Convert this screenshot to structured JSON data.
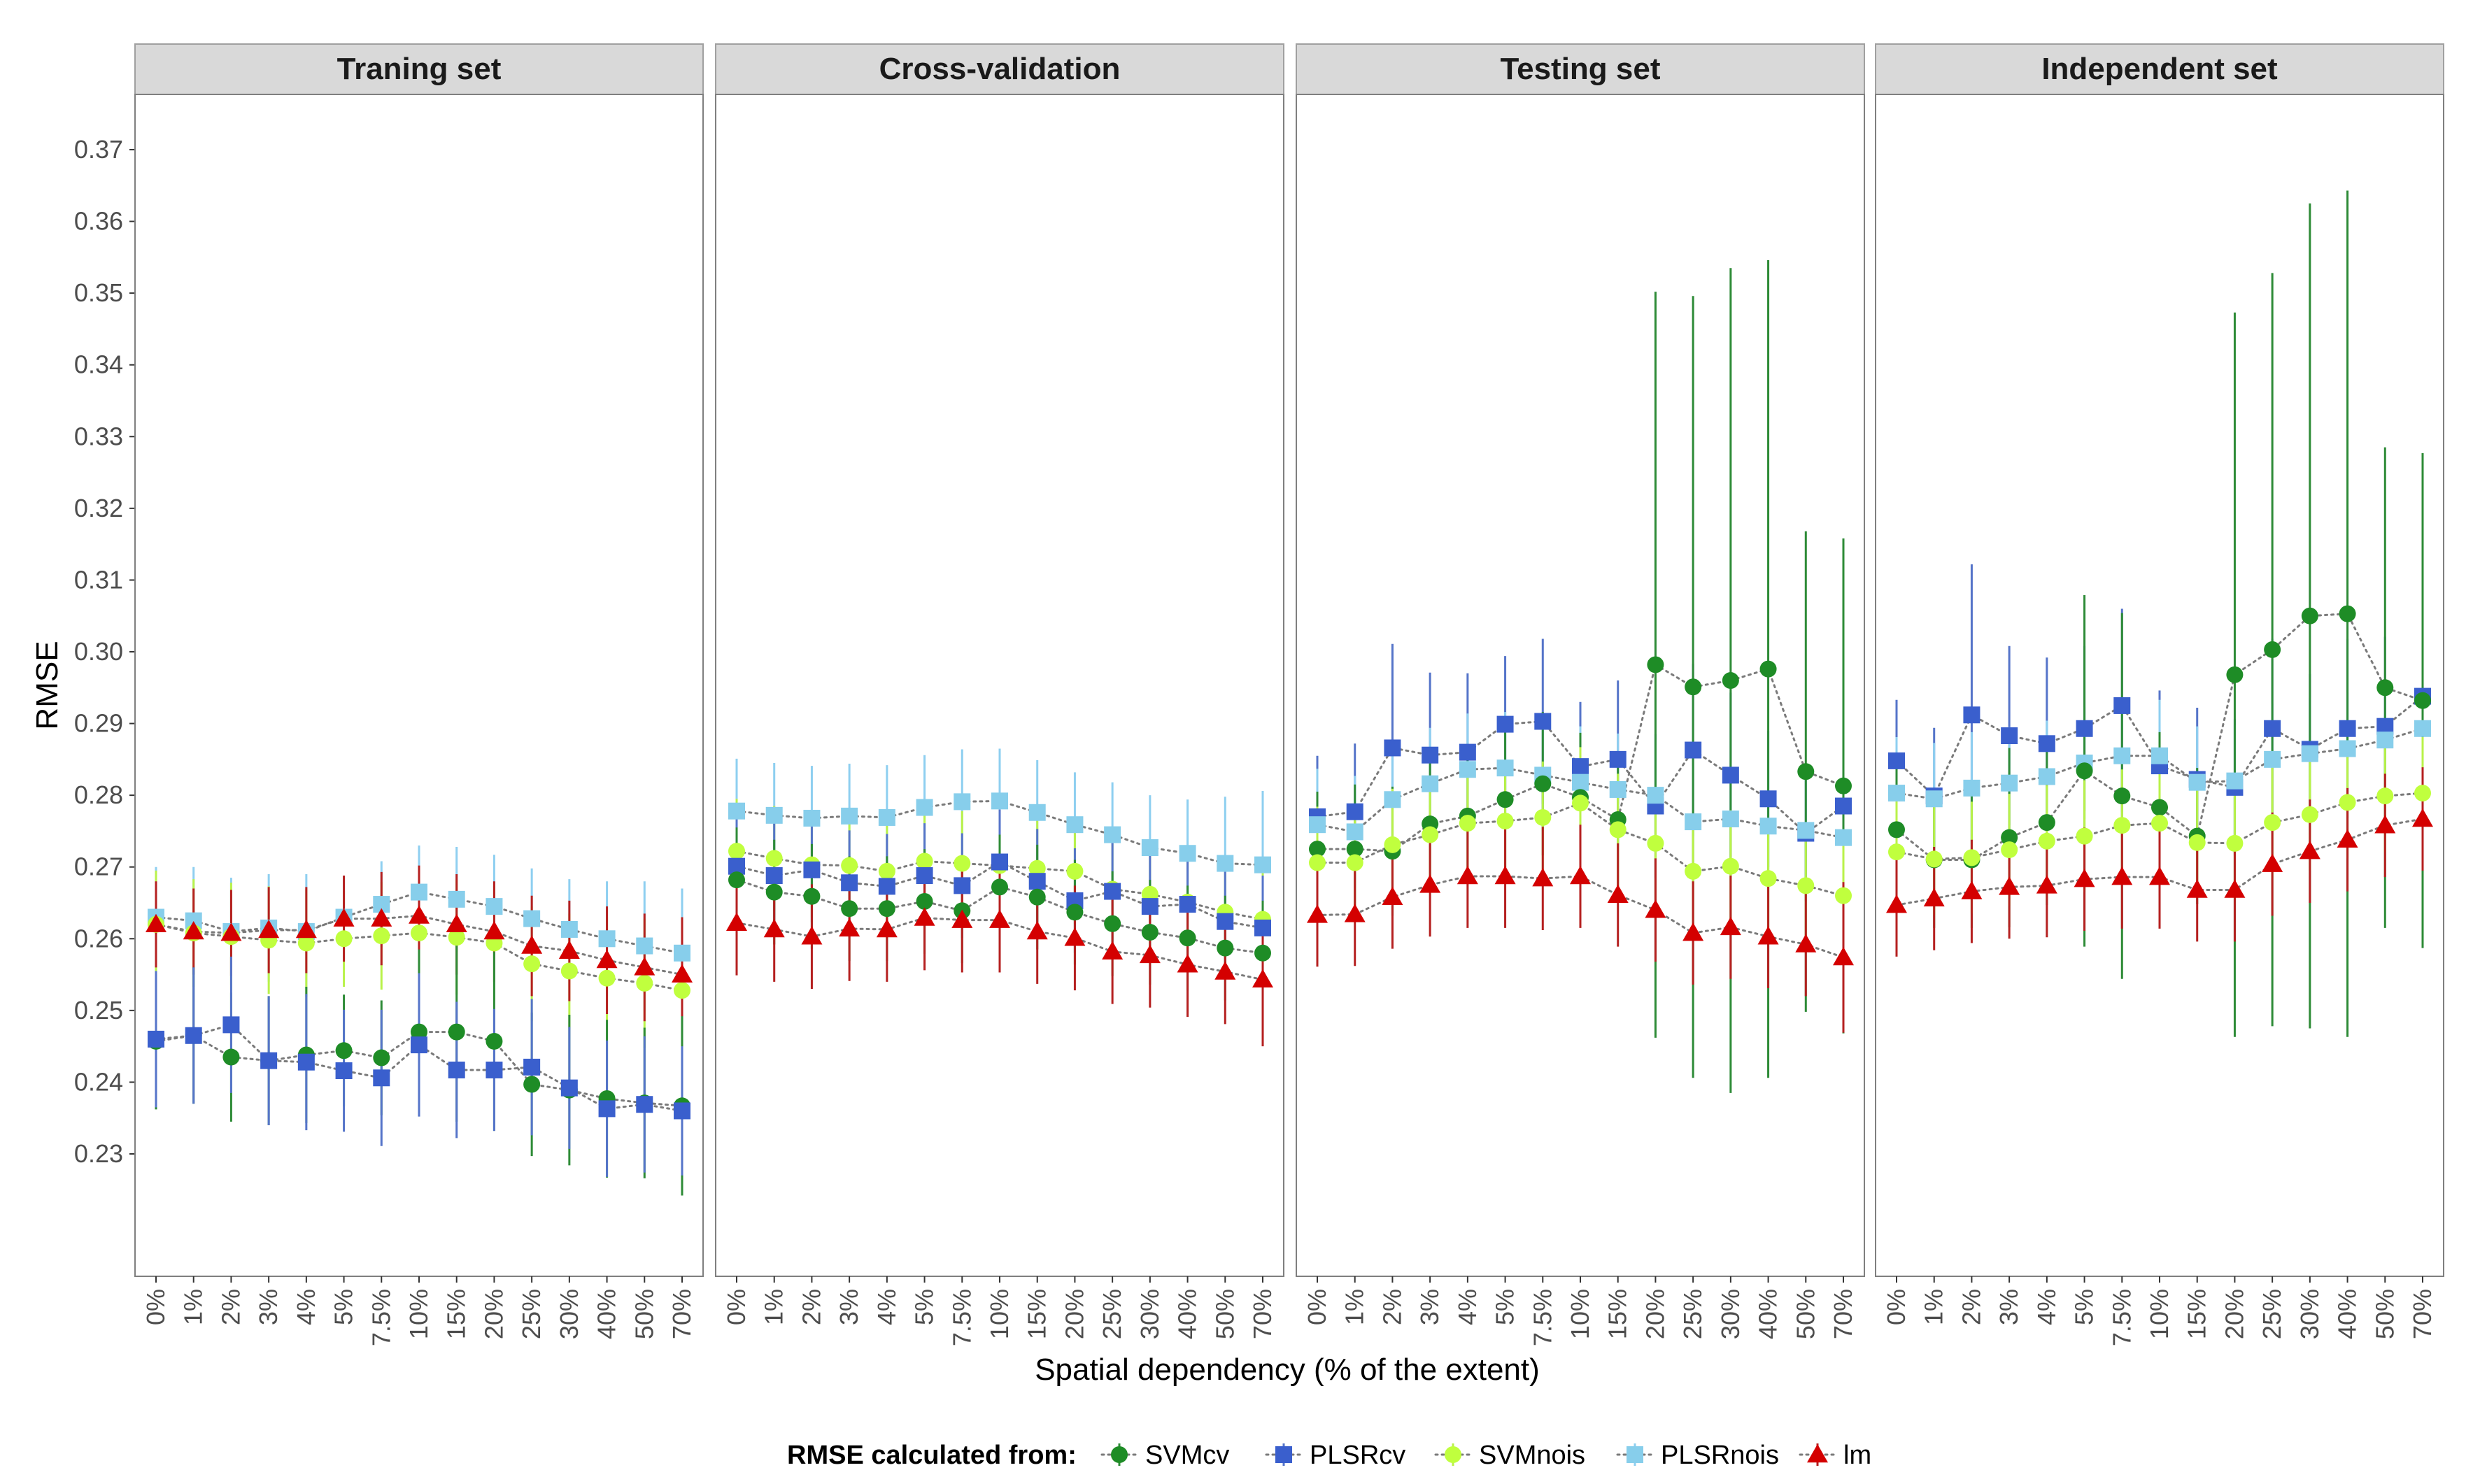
{
  "chart_data": {
    "type": "line",
    "title": "",
    "xlabel": "Spatial dependency (% of the extent)",
    "ylabel": "RMSE",
    "ylim": [
      0.22,
      0.37
    ],
    "yticks": [
      "0.23",
      "0.24",
      "0.25",
      "0.26",
      "0.27",
      "0.28",
      "0.29",
      "0.30",
      "0.31",
      "0.32",
      "0.33",
      "0.34",
      "0.35",
      "0.36",
      "0.37"
    ],
    "categories": [
      "0%",
      "1%",
      "2%",
      "3%",
      "4%",
      "5%",
      "7.5%",
      "10%",
      "15%",
      "20%",
      "25%",
      "30%",
      "40%",
      "50%",
      "70%"
    ],
    "grid": false,
    "legend": {
      "title": "RMSE calculated from:",
      "position": "bottom",
      "entries": [
        {
          "name": "SVMcv",
          "color": "#1e8c26",
          "shape": "circle"
        },
        {
          "name": "PLSRcv",
          "color": "#3a5fcd",
          "shape": "square"
        },
        {
          "name": "SVMnois",
          "color": "#c0ff3e",
          "shape": "circle"
        },
        {
          "name": "PLSRnois",
          "color": "#87ceeb",
          "shape": "square"
        },
        {
          "name": "lm",
          "color": "#d40000",
          "shape": "triangle"
        }
      ]
    },
    "panels": [
      {
        "title": "Traning set",
        "series": [
          {
            "name": "PLSRnois",
            "values": [
              0.263,
              0.2625,
              0.261,
              0.2615,
              0.261,
              0.263,
              0.2648,
              0.2665,
              0.2655,
              0.2645,
              0.2628,
              0.2613,
              0.26,
              0.259,
              0.258
            ],
            "err": [
              0.007,
              0.0075,
              0.0075,
              0.0075,
              0.008,
              0.0058,
              0.006,
              0.0065,
              0.0073,
              0.0072,
              0.007,
              0.007,
              0.008,
              0.009,
              0.009
            ]
          },
          {
            "name": "SVMnois",
            "values": [
              0.262,
              0.2608,
              0.2603,
              0.2598,
              0.2594,
              0.26,
              0.2604,
              0.2608,
              0.2602,
              0.2594,
              0.2565,
              0.2555,
              0.2545,
              0.2538,
              0.2528
            ],
            "err": [
              0.0075,
              0.0075,
              0.0075,
              0.0075,
              0.0075,
              0.0067,
              0.0075,
              0.008,
              0.008,
              0.008,
              0.008,
              0.008,
              0.0085,
              0.009,
              0.0095
            ]
          },
          {
            "name": "lm",
            "values": [
              0.262,
              0.261,
              0.2608,
              0.2612,
              0.2612,
              0.2628,
              0.2628,
              0.2632,
              0.262,
              0.261,
              0.259,
              0.2583,
              0.257,
              0.256,
              0.255
            ],
            "err": [
              0.006,
              0.006,
              0.006,
              0.006,
              0.006,
              0.006,
              0.0065,
              0.007,
              0.007,
              0.007,
              0.007,
              0.007,
              0.0075,
              0.0075,
              0.008
            ]
          },
          {
            "name": "SVMcv",
            "values": [
              0.2457,
              0.2465,
              0.2435,
              0.243,
              0.2438,
              0.2444,
              0.2434,
              0.247,
              0.247,
              0.2457,
              0.2397,
              0.2389,
              0.2377,
              0.2371,
              0.2367
            ],
            "err": [
              0.0095,
              0.0095,
              0.009,
              0.009,
              0.0095,
              0.0078,
              0.008,
              0.0115,
              0.0125,
              0.0125,
              0.01,
              0.0105,
              0.011,
              0.0105,
              0.0125
            ]
          },
          {
            "name": "PLSRcv",
            "values": [
              0.246,
              0.2465,
              0.248,
              0.243,
              0.2428,
              0.2416,
              0.2406,
              0.2452,
              0.2417,
              0.2417,
              0.2421,
              0.2392,
              0.2363,
              0.2369,
              0.236
            ],
            "err": [
              0.0095,
              0.0095,
              0.0095,
              0.009,
              0.0095,
              0.0085,
              0.0095,
              0.01,
              0.0095,
              0.0085,
              0.0095,
              0.0085,
              0.0095,
              0.0095,
              0.009
            ]
          }
        ]
      },
      {
        "title": "Cross-validation",
        "series": [
          {
            "name": "PLSRnois",
            "values": [
              0.2778,
              0.2772,
              0.2768,
              0.2771,
              0.2769,
              0.2783,
              0.2791,
              0.2792,
              0.2776,
              0.2759,
              0.2745,
              0.2727,
              0.2719,
              0.2705,
              0.2703
            ],
            "err": [
              0.0073,
              0.0073,
              0.0073,
              0.0073,
              0.0073,
              0.0073,
              0.0073,
              0.0073,
              0.0073,
              0.0073,
              0.0073,
              0.0073,
              0.0075,
              0.0093,
              0.0103
            ]
          },
          {
            "name": "SVMnois",
            "values": [
              0.2722,
              0.2712,
              0.2703,
              0.2702,
              0.2694,
              0.2708,
              0.2705,
              0.2702,
              0.2698,
              0.2694,
              0.2669,
              0.2662,
              0.2651,
              0.2637,
              0.2627
            ],
            "err": [
              0.0073,
              0.0073,
              0.0073,
              0.0073,
              0.0073,
              0.0073,
              0.0073,
              0.0073,
              0.0073,
              0.0073,
              0.0073,
              0.0073,
              0.0073,
              0.0073,
              0.0073
            ]
          },
          {
            "name": "PLSRcv",
            "values": [
              0.2701,
              0.2688,
              0.2696,
              0.2678,
              0.2673,
              0.2688,
              0.2674,
              0.2707,
              0.268,
              0.2653,
              0.2666,
              0.2645,
              0.2648,
              0.2624,
              0.2615
            ],
            "err": [
              0.0073,
              0.0073,
              0.0073,
              0.0073,
              0.0073,
              0.0073,
              0.0073,
              0.0073,
              0.0073,
              0.0073,
              0.0073,
              0.0073,
              0.0073,
              0.0073,
              0.0073
            ]
          },
          {
            "name": "SVMcv",
            "values": [
              0.2682,
              0.2665,
              0.2659,
              0.2642,
              0.2642,
              0.2652,
              0.2639,
              0.2672,
              0.2658,
              0.2637,
              0.2621,
              0.2609,
              0.2601,
              0.2587,
              0.258
            ],
            "err": [
              0.0073,
              0.0073,
              0.0073,
              0.0073,
              0.0073,
              0.0073,
              0.0073,
              0.0073,
              0.0073,
              0.0073,
              0.0073,
              0.0073,
              0.0073,
              0.0073,
              0.0073
            ]
          },
          {
            "name": "lm",
            "values": [
              0.2622,
              0.2613,
              0.2603,
              0.2614,
              0.2613,
              0.2629,
              0.2626,
              0.2626,
              0.261,
              0.2601,
              0.2582,
              0.2577,
              0.2564,
              0.2554,
              0.2543
            ],
            "err": [
              0.0073,
              0.0073,
              0.0073,
              0.0073,
              0.0073,
              0.0073,
              0.0073,
              0.0073,
              0.0073,
              0.0073,
              0.0073,
              0.0073,
              0.0073,
              0.0073,
              0.0093
            ]
          }
        ]
      },
      {
        "title": "Testing set",
        "series": [
          {
            "name": "PLSRcv",
            "values": [
              0.277,
              0.2777,
              0.2866,
              0.2856,
              0.286,
              0.2899,
              0.2903,
              0.284,
              0.285,
              0.2785,
              0.2863,
              0.2828,
              0.2795,
              0.2747,
              0.2785
            ],
            "err": [
              0.0085,
              0.0095,
              0.0145,
              0.0115,
              0.011,
              0.0095,
              0.0115,
              0.009,
              0.011,
              0.01,
              0.012,
              0.0115,
              0.0095,
              0.0095,
              0.0095
            ]
          },
          {
            "name": "PLSRnois",
            "values": [
              0.2759,
              0.2749,
              0.2794,
              0.2816,
              0.2836,
              0.2838,
              0.2828,
              0.2818,
              0.2808,
              0.28,
              0.2763,
              0.2767,
              0.2757,
              0.2751,
              0.2741
            ],
            "err": [
              0.0078,
              0.0078,
              0.0078,
              0.0078,
              0.0078,
              0.0078,
              0.0078,
              0.0078,
              0.0078,
              0.0078,
              0.0078,
              0.0078,
              0.0078,
              0.0078,
              0.0078
            ]
          },
          {
            "name": "SVMcv",
            "values": [
              0.2725,
              0.2725,
              0.2722,
              0.276,
              0.2771,
              0.2794,
              0.2816,
              0.2797,
              0.2766,
              0.2982,
              0.2951,
              0.296,
              0.2976,
              0.2833,
              0.2813
            ],
            "err": [
              0.008,
              0.009,
              0.009,
              0.0095,
              0.009,
              0.0105,
              0.01,
              0.009,
              0.0095,
              0.052,
              0.0545,
              0.0575,
              0.057,
              0.0335,
              0.0345
            ]
          },
          {
            "name": "SVMnois",
            "values": [
              0.2706,
              0.2706,
              0.2731,
              0.2745,
              0.2761,
              0.2764,
              0.2769,
              0.2789,
              0.2752,
              0.2733,
              0.2694,
              0.2701,
              0.2684,
              0.2674,
              0.266
            ],
            "err": [
              0.0078,
              0.0078,
              0.0078,
              0.0078,
              0.0078,
              0.0078,
              0.0078,
              0.0078,
              0.0078,
              0.0078,
              0.0078,
              0.0078,
              0.0078,
              0.0078,
              0.0078
            ]
          },
          {
            "name": "lm",
            "values": [
              0.2633,
              0.2634,
              0.2658,
              0.2675,
              0.2687,
              0.2687,
              0.2684,
              0.2687,
              0.2661,
              0.264,
              0.2608,
              0.2616,
              0.2603,
              0.2592,
              0.2574
            ],
            "err": [
              0.0072,
              0.0072,
              0.0072,
              0.0072,
              0.0072,
              0.0072,
              0.0072,
              0.0072,
              0.0072,
              0.0072,
              0.0072,
              0.0072,
              0.0072,
              0.0072,
              0.0105
            ]
          }
        ]
      },
      {
        "title": "Independent set",
        "series": [
          {
            "name": "PLSRcv",
            "values": [
              0.2848,
              0.2799,
              0.2912,
              0.2883,
              0.2872,
              0.2893,
              0.2925,
              0.2841,
              0.2822,
              0.2811,
              0.2893,
              0.2864,
              0.2893,
              0.2896,
              0.2938
            ],
            "err": [
              0.0085,
              0.0095,
              0.021,
              0.0125,
              0.012,
              0.0115,
              0.0135,
              0.0105,
              0.01,
              0.0095,
              0.0125,
              0.0105,
              0.0125,
              0.0125,
              0.0095
            ]
          },
          {
            "name": "PLSRnois",
            "values": [
              0.2803,
              0.2795,
              0.281,
              0.2817,
              0.2826,
              0.2845,
              0.2855,
              0.2855,
              0.2818,
              0.282,
              0.285,
              0.2858,
              0.2865,
              0.2877,
              0.2893
            ],
            "err": [
              0.0078,
              0.0078,
              0.0078,
              0.0078,
              0.0078,
              0.0078,
              0.0078,
              0.0078,
              0.0078,
              0.0078,
              0.0078,
              0.0078,
              0.0078,
              0.0078,
              0.0078
            ]
          },
          {
            "name": "SVMcv",
            "values": [
              0.2752,
              0.271,
              0.271,
              0.2741,
              0.2762,
              0.2834,
              0.2799,
              0.2783,
              0.2743,
              0.2968,
              0.3003,
              0.305,
              0.3053,
              0.295,
              0.2932
            ],
            "err": [
              0.0085,
              0.0095,
              0.0095,
              0.0125,
              0.0115,
              0.0245,
              0.0255,
              0.0105,
              0.0095,
              0.0505,
              0.0525,
              0.0575,
              0.059,
              0.0335,
              0.0345
            ]
          },
          {
            "name": "SVMnois",
            "values": [
              0.2721,
              0.2711,
              0.2713,
              0.2724,
              0.2736,
              0.2743,
              0.2758,
              0.2761,
              0.2734,
              0.2733,
              0.2762,
              0.2773,
              0.279,
              0.2799,
              0.2803
            ],
            "err": [
              0.0078,
              0.0078,
              0.0078,
              0.0078,
              0.0078,
              0.0078,
              0.0078,
              0.0078,
              0.0078,
              0.0078,
              0.0078,
              0.0078,
              0.0078,
              0.0078,
              0.0078
            ]
          },
          {
            "name": "lm",
            "values": [
              0.2647,
              0.2656,
              0.2666,
              0.2672,
              0.2674,
              0.2683,
              0.2686,
              0.2686,
              0.2668,
              0.2668,
              0.2704,
              0.2722,
              0.2738,
              0.2758,
              0.2767
            ],
            "err": [
              0.0072,
              0.0072,
              0.0072,
              0.0072,
              0.0072,
              0.0072,
              0.0072,
              0.0072,
              0.0072,
              0.0072,
              0.0072,
              0.0072,
              0.0072,
              0.0072,
              0.0072
            ]
          }
        ]
      }
    ]
  }
}
